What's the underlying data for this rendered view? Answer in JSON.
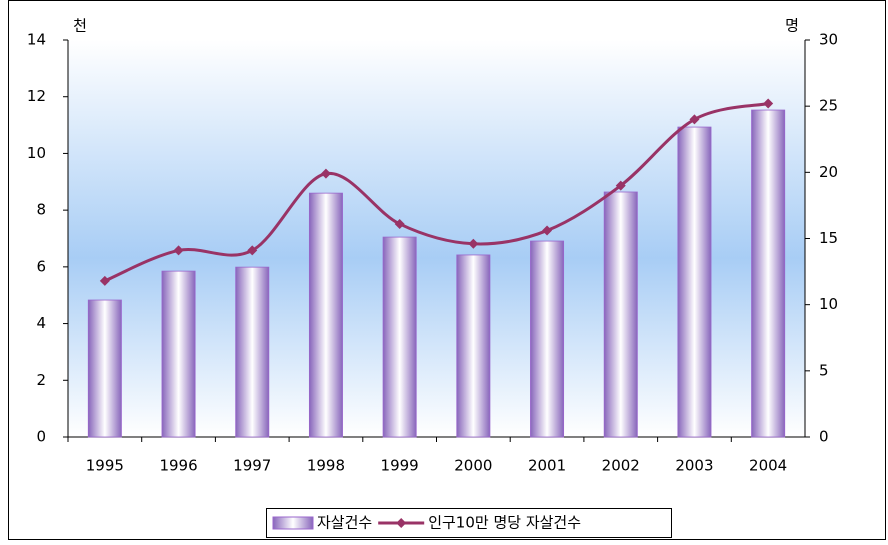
{
  "chart_data": {
    "type": "bar",
    "y_label": "천",
    "y2_label": "명",
    "categories": [
      "1995",
      "1996",
      "1997",
      "1998",
      "1999",
      "2000",
      "2001",
      "2002",
      "2003",
      "2004"
    ],
    "series": [
      {
        "name": "자살건수",
        "color": "#9966cc",
        "values": [
          4.83,
          5.85,
          5.99,
          8.6,
          7.05,
          6.42,
          6.91,
          8.64,
          10.93,
          11.53
        ]
      },
      {
        "name": "인구10만 명당 자살건수",
        "color": "#993366",
        "type": "line",
        "axis": "y2",
        "values": [
          11.8,
          14.1,
          14.1,
          19.9,
          16.1,
          14.6,
          15.6,
          19.0,
          24.0,
          25.2
        ]
      }
    ],
    "ylim": [
      0,
      14
    ],
    "yticks": [
      0,
      2,
      4,
      6,
      8,
      10,
      12,
      14
    ],
    "y2lim": [
      0,
      30
    ],
    "y2ticks": [
      0,
      5,
      10,
      15,
      20,
      25,
      30
    ],
    "legend": "bottom"
  }
}
